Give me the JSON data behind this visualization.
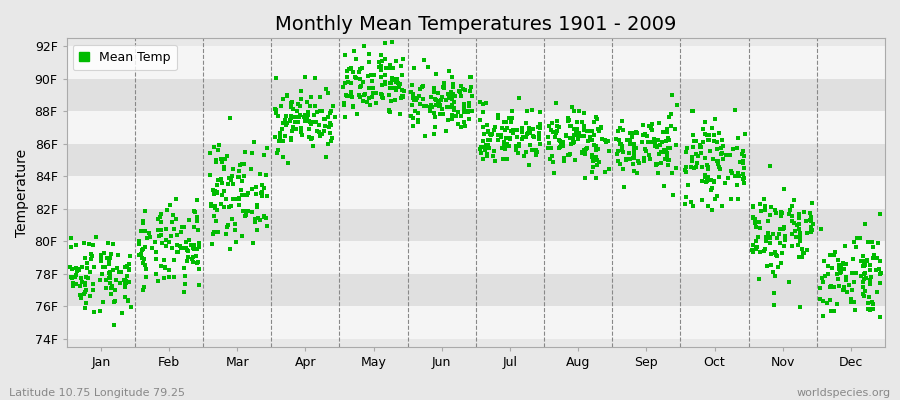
{
  "title": "Monthly Mean Temperatures 1901 - 2009",
  "ylabel": "Temperature",
  "xlabel_labels": [
    "Jan",
    "Feb",
    "Mar",
    "Apr",
    "May",
    "Jun",
    "Jul",
    "Aug",
    "Sep",
    "Oct",
    "Nov",
    "Dec"
  ],
  "ytick_labels": [
    "74F",
    "76F",
    "78F",
    "80F",
    "82F",
    "84F",
    "86F",
    "88F",
    "90F",
    "92F"
  ],
  "ytick_values": [
    74,
    76,
    78,
    80,
    82,
    84,
    86,
    88,
    90,
    92
  ],
  "ylim": [
    73.5,
    92.5
  ],
  "xlim": [
    0,
    12
  ],
  "dot_color": "#00bb00",
  "background_color": "#e8e8e8",
  "band_color_light": "#f5f5f5",
  "band_color_dark": "#e0e0e0",
  "title_fontsize": 14,
  "axis_fontsize": 10,
  "tick_fontsize": 9,
  "footer_left": "Latitude 10.75 Longitude 79.25",
  "footer_right": "worldspecies.org",
  "legend_label": "Mean Temp",
  "monthly_means": [
    78.0,
    79.5,
    83.0,
    87.5,
    89.5,
    88.5,
    86.5,
    86.2,
    85.8,
    84.8,
    80.5,
    78.0
  ],
  "monthly_stds": [
    1.2,
    1.3,
    1.5,
    1.0,
    1.1,
    0.9,
    0.9,
    1.0,
    1.0,
    1.2,
    1.5,
    1.4
  ],
  "n_years": 109,
  "seed": 42,
  "marker_size": 8,
  "figsize": [
    9.0,
    4.0
  ],
  "dpi": 100
}
